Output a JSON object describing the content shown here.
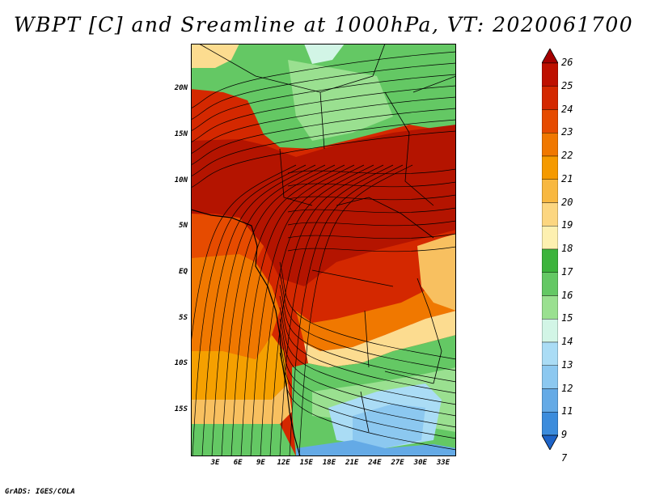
{
  "title": "WBPT [C] and Sreamline at 1000hPa, VT: 2020061700",
  "footer": "GrADS: IGES/COLA",
  "lat_ticks": [
    "20N",
    "15N",
    "10N",
    "5N",
    "EQ",
    "5S",
    "10S",
    "15S"
  ],
  "lon_ticks": [
    "3E",
    "6E",
    "9E",
    "12E",
    "15E",
    "18E",
    "21E",
    "24E",
    "27E",
    "30E",
    "33E"
  ],
  "colorbar": {
    "labels": [
      "26",
      "25",
      "24",
      "23",
      "22",
      "21",
      "20",
      "19",
      "18",
      "17",
      "16",
      "15",
      "14",
      "13",
      "12",
      "11",
      "9",
      "7"
    ],
    "colors": [
      "#a50000",
      "#be1000",
      "#d42800",
      "#e64b00",
      "#f07800",
      "#f59a00",
      "#f8b840",
      "#fcd680",
      "#fdf0b0",
      "#3cb43c",
      "#64c864",
      "#9ae090",
      "#d2f5e6",
      "#aadcf5",
      "#8cc8f0",
      "#64aae6",
      "#3c8cdc",
      "#1e64c8"
    ]
  },
  "map": {
    "fill_colors": {
      "dark_red": "#b41400",
      "red": "#d42800",
      "orange_red": "#e64b00",
      "orange": "#f07800",
      "light_orange": "#f5a000",
      "tan": "#f8c060",
      "pale": "#fcdc90",
      "cream": "#fdf0b0",
      "green": "#50b450",
      "mid_green": "#64c864",
      "light_green": "#9ae090",
      "very_light_green": "#d2f5e6",
      "light_blue": "#aadcf5",
      "blue": "#8cc8f0",
      "deep_blue": "#64aae6"
    }
  }
}
